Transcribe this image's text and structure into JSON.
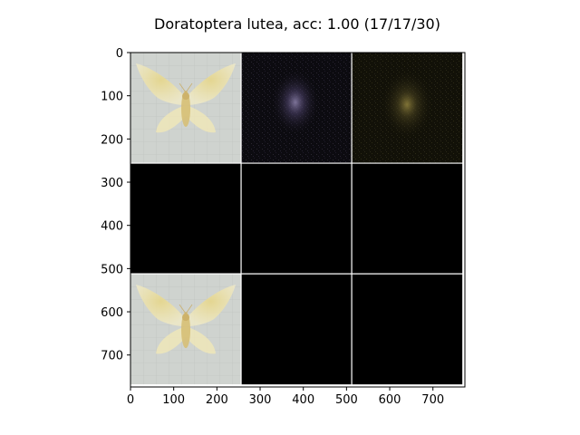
{
  "title": "Doratoptera lutea, acc: 1.00 (17/17/30)",
  "image_extent": [
    0,
    774
  ],
  "axes": {
    "y_ticks": [
      "0",
      "100",
      "200",
      "300",
      "400",
      "500",
      "600",
      "700"
    ],
    "x_ticks": [
      "0",
      "100",
      "200",
      "300",
      "400",
      "500",
      "600",
      "700"
    ]
  },
  "grid": {
    "rows": 3,
    "cols": 3,
    "tile_size": 256,
    "separator_color": "#ffffff",
    "tiles": [
      {
        "row": 0,
        "col": 0,
        "content": "moth-photo",
        "background": "#cfd3cf"
      },
      {
        "row": 0,
        "col": 1,
        "content": "dark-noise-purple",
        "background": "#0c0b10"
      },
      {
        "row": 0,
        "col": 2,
        "content": "dark-noise-olive",
        "background": "#121108"
      },
      {
        "row": 1,
        "col": 0,
        "content": "black",
        "background": "#000000"
      },
      {
        "row": 1,
        "col": 1,
        "content": "black",
        "background": "#000000"
      },
      {
        "row": 1,
        "col": 2,
        "content": "black",
        "background": "#000000"
      },
      {
        "row": 2,
        "col": 0,
        "content": "moth-photo",
        "background": "#cfd3cf"
      },
      {
        "row": 2,
        "col": 1,
        "content": "black",
        "background": "#000000"
      },
      {
        "row": 2,
        "col": 2,
        "content": "black",
        "background": "#000000"
      }
    ]
  },
  "colors": {
    "moth_wing": "#efe6b0",
    "moth_body": "#d9c27a",
    "dark_glow_purple": "#6a5f86",
    "dark_glow_olive": "#6d6433"
  }
}
